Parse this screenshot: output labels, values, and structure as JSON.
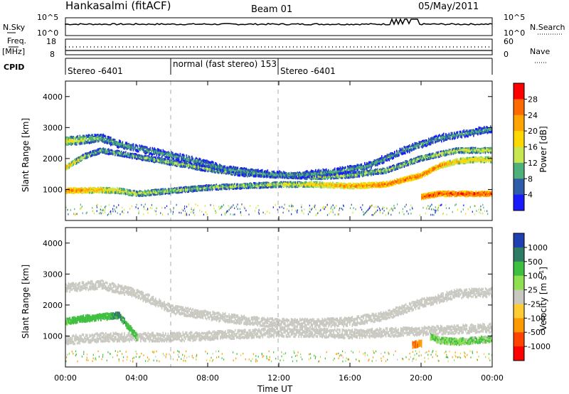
{
  "header": {
    "station": "Hankasalmi (fitACF)",
    "beam": "Beam 01",
    "date": "05/May/2011"
  },
  "panels": {
    "nsky_label": "N.Sky",
    "nsky_ticks": [
      "10^5",
      "10^0"
    ],
    "nsearch_label": "N.Search",
    "nsearch_ticks": [
      "10^5",
      "10^0"
    ],
    "freq_label": "Freq.",
    "freq_unit": "[MHz]",
    "freq_ticks": [
      "18",
      "8"
    ],
    "nave_label": "Nave",
    "nave_ticks": [
      "60",
      "0"
    ],
    "cpid_label": "CPID",
    "cpid_segments": [
      "Stereo -6401",
      "normal (fast stereo) 153",
      "Stereo -6401"
    ]
  },
  "power_colorbar": {
    "label": "Power [dB]",
    "ticks": [
      "28",
      "24",
      "20",
      "16",
      "12",
      "8",
      "4"
    ],
    "colors": [
      "#ff0000",
      "#ff6a00",
      "#ffa400",
      "#ffd800",
      "#c8e650",
      "#4fb07a",
      "#2e5ca8",
      "#1a1aff"
    ]
  },
  "velocity_colorbar": {
    "label": "Velocity [m s",
    "label_sup": "-1",
    "label_end": "]",
    "ticks": [
      "1000",
      "500",
      "100",
      "25",
      "-25",
      "-100",
      "-500",
      "-1000"
    ],
    "colors": [
      "#1f40b0",
      "#2e7d63",
      "#3fbf3f",
      "#8ee050",
      "#c8c8c0",
      "#ffcc33",
      "#ff9900",
      "#ff4400",
      "#ff0000"
    ]
  },
  "axes": {
    "ylabel": "Slant Range [km]",
    "yticks": [
      "4000",
      "3000",
      "2000",
      "1000"
    ],
    "xticks": [
      "00:00",
      "04:00",
      "08:00",
      "12:00",
      "16:00",
      "20:00",
      "00:00"
    ],
    "xlabel": "Time UT"
  },
  "chart_data": [
    {
      "type": "heatmap",
      "title": "",
      "ylabel": "Slant Range [km]",
      "xlabel": "",
      "colorbar_label": "Power [dB]",
      "colorbar_range": [
        0,
        30
      ],
      "x_unit": "hours UT",
      "xlim": [
        0,
        24
      ],
      "ylim": [
        0,
        4500
      ],
      "echo_bands": [
        {
          "name": "lower",
          "points": [
            [
              0,
              1000,
              26
            ],
            [
              2,
              1020,
              22
            ],
            [
              3,
              1000,
              18
            ],
            [
              4,
              900,
              16
            ],
            [
              6,
              1000,
              14
            ],
            [
              8,
              1100,
              14
            ],
            [
              10,
              1150,
              14
            ],
            [
              12,
              1200,
              16
            ],
            [
              14,
              1200,
              20
            ],
            [
              16,
              1150,
              24
            ],
            [
              18,
              1200,
              26
            ],
            [
              20,
              1500,
              26
            ],
            [
              21,
              1800,
              24
            ],
            [
              22,
              1950,
              22
            ],
            [
              23,
              2000,
              20
            ],
            [
              24,
              2000,
              20
            ]
          ]
        },
        {
          "name": "upper",
          "points": [
            [
              0,
              1750,
              22
            ],
            [
              1,
              2100,
              14
            ],
            [
              2,
              2300,
              12
            ],
            [
              4,
              2100,
              12
            ],
            [
              6,
              1900,
              14
            ],
            [
              8,
              1700,
              14
            ],
            [
              10,
              1550,
              14
            ],
            [
              12,
              1500,
              16
            ],
            [
              14,
              1450,
              16
            ],
            [
              16,
              1500,
              14
            ],
            [
              18,
              1650,
              14
            ],
            [
              20,
              2050,
              14
            ],
            [
              22,
              2300,
              16
            ],
            [
              24,
              2300,
              16
            ]
          ]
        },
        {
          "name": "near",
          "points": [
            [
              0,
              2600,
              18
            ],
            [
              2,
              2700,
              12
            ],
            [
              3,
              2500,
              10
            ],
            [
              5,
              2250,
              10
            ],
            [
              7,
              2000,
              10
            ],
            [
              9,
              1700,
              10
            ],
            [
              11,
              1550,
              10
            ],
            [
              13,
              1500,
              10
            ],
            [
              15,
              1600,
              10
            ],
            [
              17,
              1800,
              10
            ],
            [
              19,
              2300,
              10
            ],
            [
              21,
              2700,
              10
            ],
            [
              23,
              2900,
              10
            ],
            [
              24,
              3000,
              10
            ]
          ]
        },
        {
          "name": "late-evening",
          "points": [
            [
              20,
              800,
              28
            ],
            [
              21,
              900,
              28
            ],
            [
              22,
              900,
              28
            ],
            [
              23,
              900,
              28
            ],
            [
              24,
              900,
              28
            ]
          ]
        }
      ]
    },
    {
      "type": "heatmap",
      "title": "",
      "ylabel": "Slant Range [km]",
      "xlabel": "Time UT",
      "colorbar_label": "Velocity [m s-1]",
      "colorbar_range": [
        -1000,
        1000
      ],
      "x_unit": "hours UT",
      "xlim": [
        0,
        24
      ],
      "ylim": [
        0,
        4500
      ],
      "echo_regions": [
        {
          "name": "ground-scatter",
          "points": [
            [
              0,
              2600,
              0
            ],
            [
              2,
              2700,
              0
            ],
            [
              4,
              2400,
              0
            ],
            [
              6,
              1900,
              0
            ],
            [
              8,
              1700,
              0
            ],
            [
              10,
              1550,
              0
            ],
            [
              12,
              1450,
              0
            ],
            [
              14,
              1450,
              0
            ],
            [
              16,
              1500,
              0
            ],
            [
              18,
              1700,
              0
            ],
            [
              20,
              2100,
              0
            ],
            [
              22,
              2400,
              0
            ],
            [
              24,
              2450,
              0
            ]
          ]
        },
        {
          "name": "ground-scatter-low",
          "points": [
            [
              0,
              900,
              0
            ],
            [
              2,
              1000,
              0
            ],
            [
              4,
              1000,
              0
            ],
            [
              6,
              1000,
              0
            ],
            [
              8,
              1050,
              0
            ],
            [
              10,
              1100,
              0
            ],
            [
              12,
              1150,
              0
            ],
            [
              14,
              1150,
              0
            ],
            [
              16,
              1100,
              0
            ],
            [
              18,
              1150,
              0
            ],
            [
              20,
              1200,
              0
            ],
            [
              22,
              1250,
              0
            ],
            [
              24,
              1300,
              0
            ]
          ]
        },
        {
          "name": "positive-flow",
          "points": [
            [
              0,
              1500,
              120
            ],
            [
              1,
              1600,
              300
            ],
            [
              2,
              1650,
              250
            ],
            [
              3,
              1700,
              600
            ],
            [
              4,
              1000,
              150
            ]
          ]
        },
        {
          "name": "negative-flow",
          "points": [
            [
              19.5,
              750,
              -500
            ],
            [
              20,
              800,
              -400
            ]
          ]
        },
        {
          "name": "late-positive",
          "points": [
            [
              20.5,
              1000,
              80
            ],
            [
              21,
              900,
              100
            ],
            [
              22,
              850,
              100
            ],
            [
              23,
              900,
              90
            ],
            [
              24,
              950,
              90
            ]
          ]
        }
      ]
    }
  ]
}
